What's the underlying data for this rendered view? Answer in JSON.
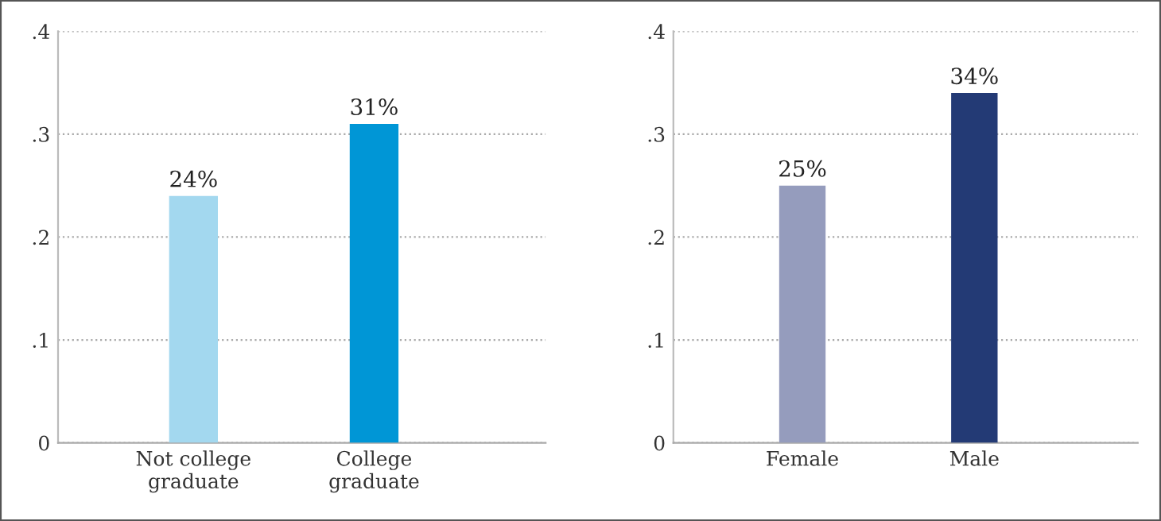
{
  "chart_data": [
    {
      "type": "bar",
      "categories": [
        "Not college\ngraduate",
        "College\ngraduate"
      ],
      "values": [
        0.24,
        0.31
      ],
      "colors": [
        "#a3d8ef",
        "#0096d6"
      ],
      "value_labels": [
        "24%",
        "31%"
      ],
      "ylim": [
        0,
        0.4
      ],
      "yticks": [
        0,
        {
          "value": 0.1,
          "label": ".1"
        },
        {
          "value": 0.2,
          "label": ".2"
        },
        {
          "value": 0.3,
          "label": ".3"
        },
        {
          "value": 0.4,
          "label": ".4"
        }
      ],
      "grid": "y"
    },
    {
      "type": "bar",
      "categories": [
        "Female",
        "Male"
      ],
      "values": [
        0.25,
        0.34
      ],
      "colors": [
        "#959cbd",
        "#233a75"
      ],
      "value_labels": [
        "25%",
        "34%"
      ],
      "ylim": [
        0,
        0.4
      ],
      "yticks": [
        0,
        {
          "value": 0.1,
          "label": ".1"
        },
        {
          "value": 0.2,
          "label": ".2"
        },
        {
          "value": 0.3,
          "label": ".3"
        },
        {
          "value": 0.4,
          "label": ".4"
        }
      ],
      "grid": "y"
    }
  ]
}
